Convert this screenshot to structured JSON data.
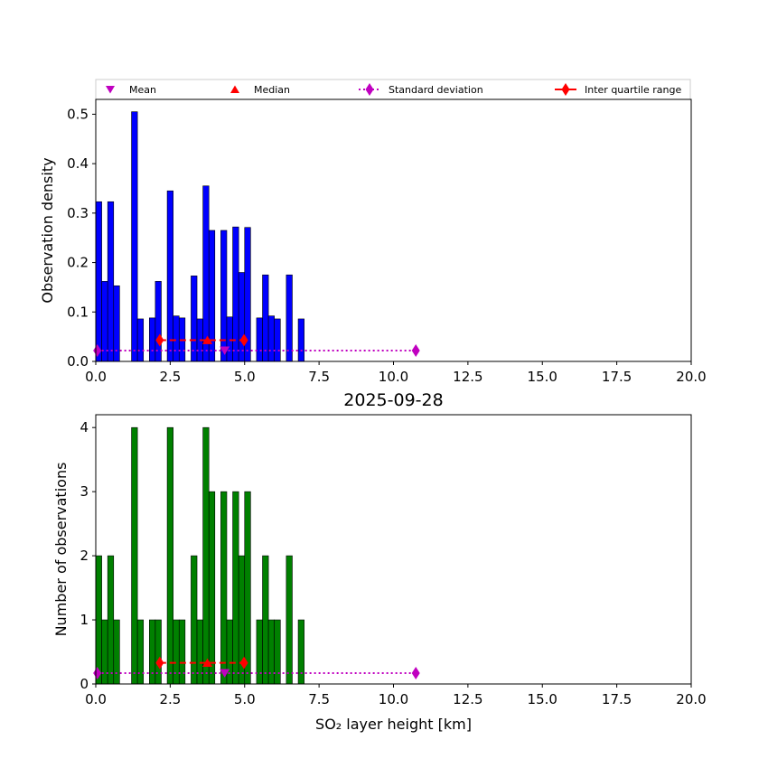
{
  "chart_data": {
    "type": "bar",
    "figure_title": "2025-09-28",
    "colors": {
      "density_bar": "#0000ff",
      "count_bar": "#008000",
      "mean": "#c000c0",
      "median": "#ff0000",
      "std": "#c000c0",
      "iqr": "#ff0000"
    },
    "legend": {
      "placement": "top",
      "entries": [
        {
          "key": "mean",
          "label": "Mean",
          "marker": "triangle-down"
        },
        {
          "key": "median",
          "label": "Median",
          "marker": "triangle-up"
        },
        {
          "key": "std",
          "label": "Standard deviation",
          "marker": "diamond-dotted-line"
        },
        {
          "key": "iqr",
          "label": "Inter quartile range",
          "marker": "diamond-solid-line"
        }
      ]
    },
    "bin_width": 0.2,
    "bin_starts": [
      0.0,
      0.2,
      0.4,
      0.6,
      1.2,
      1.4,
      1.8,
      2.0,
      2.4,
      2.6,
      2.8,
      3.2,
      3.4,
      3.6,
      3.8,
      4.2,
      4.4,
      4.6,
      4.8,
      5.0,
      5.4,
      5.6,
      5.8,
      6.0,
      6.4,
      6.8
    ],
    "stats": {
      "mean": 4.33,
      "median": 3.75,
      "std_range": [
        0.05,
        10.75
      ],
      "iqr_range": [
        2.15,
        4.98
      ]
    },
    "x_axis": {
      "label": "SO₂ layer height [km]",
      "xlim": [
        0,
        20
      ],
      "ticks": [
        "0.0",
        "2.5",
        "5.0",
        "7.5",
        "10.0",
        "12.5",
        "15.0",
        "17.5",
        "20.0"
      ]
    },
    "panels": [
      {
        "name": "density",
        "ylabel": "Observation density",
        "ylim": [
          0,
          0.53
        ],
        "yticks": [
          "0.0",
          "0.1",
          "0.2",
          "0.3",
          "0.4",
          "0.5"
        ],
        "values": [
          0.323,
          0.162,
          0.323,
          0.153,
          0.505,
          0.086,
          0.088,
          0.162,
          0.345,
          0.092,
          0.088,
          0.173,
          0.086,
          0.355,
          0.265,
          0.265,
          0.09,
          0.272,
          0.18,
          0.271,
          0.088,
          0.175,
          0.092,
          0.086,
          0.175,
          0.086
        ],
        "stat_y": {
          "mean": 0.022,
          "median": 0.043,
          "std": 0.022,
          "iqr": 0.043
        }
      },
      {
        "name": "count",
        "ylabel": "Number of observations",
        "ylim": [
          0,
          4.2
        ],
        "yticks": [
          "0",
          "1",
          "2",
          "3",
          "4"
        ],
        "values": [
          2,
          1,
          2,
          1,
          4,
          1,
          1,
          1,
          4,
          1,
          1,
          2,
          1,
          4,
          3,
          3,
          1,
          3,
          2,
          3,
          1,
          2,
          1,
          1,
          2,
          1
        ],
        "stat_y": {
          "mean": 0.17,
          "median": 0.33,
          "std": 0.17,
          "iqr": 0.33
        }
      }
    ]
  }
}
